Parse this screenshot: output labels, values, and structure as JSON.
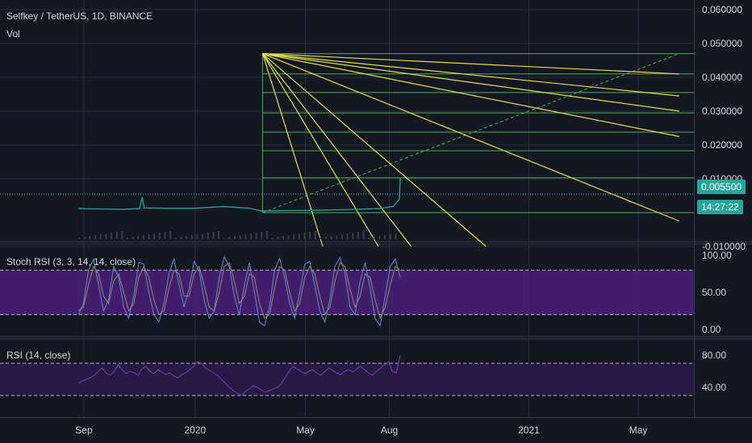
{
  "header": {
    "symbol_line": "Selfkey / TetherUS, 1D, BINANCE",
    "vol_label": "Vol"
  },
  "price_tags": {
    "last_price": "0.005500",
    "countdown": "14:27:22",
    "color": "#26a69a"
  },
  "colors": {
    "background": "#131722",
    "grid": "#2a2e39",
    "axis_text": "#d1d4dc",
    "fan_lines": "#e4e040",
    "fan_levels": "#4caf50",
    "stoch_band": "#4a1f78",
    "rsi_band": "#2a1a48",
    "rsi_line": "#7b3fb5",
    "stoch_k": "#5a8fd6",
    "stoch_d": "#9b8a6a",
    "price_line": "#26c6da"
  },
  "chart_data": [
    {
      "type": "line",
      "panel": "price",
      "title": "Selfkey / TetherUS, 1D, BINANCE",
      "y_ticks": [
        "0.060000",
        "0.050000",
        "0.040000",
        "0.030000",
        "0.020000",
        "0.010000",
        "0.005500",
        "-0.010000"
      ],
      "ylim": [
        -0.01,
        0.06
      ],
      "x_ticks": [
        "Sep",
        "2020",
        "May",
        "Aug",
        "2021",
        "May"
      ],
      "series": [
        {
          "name": "price",
          "x": [
            "2019-08-26",
            "2019-09-15",
            "2019-10-15",
            "2019-11-01",
            "2019-11-04",
            "2019-11-06",
            "2019-12-01",
            "2020-01-01",
            "2020-02-01",
            "2020-03-01",
            "2020-03-13",
            "2020-04-15",
            "2020-05-10",
            "2020-06-15",
            "2020-07-20",
            "2020-08-05",
            "2020-08-12",
            "2020-08-13"
          ],
          "values": [
            0.0012,
            0.0011,
            0.001,
            0.0012,
            0.0046,
            0.0014,
            0.0013,
            0.0013,
            0.0018,
            0.0013,
            0.0005,
            0.0006,
            0.0007,
            0.0009,
            0.0012,
            0.0018,
            0.004,
            0.0105
          ]
        }
      ],
      "gann_fan": {
        "origin": {
          "x": "2020-03-15",
          "y": 0.047
        },
        "fan_ends": [
          {
            "x": "2021-06-15",
            "y": 0.041
          },
          {
            "x": "2021-06-15",
            "y": 0.0345
          },
          {
            "x": "2021-06-15",
            "y": 0.03
          },
          {
            "x": "2021-06-15",
            "y": 0.0225
          },
          {
            "x": "2021-06-15",
            "y": -0.0025
          },
          {
            "x": "2020-11-15",
            "y": -0.01
          },
          {
            "x": "2020-08-25",
            "y": -0.01
          },
          {
            "x": "2020-07-20",
            "y": -0.01
          },
          {
            "x": "2020-05-20",
            "y": -0.01
          }
        ],
        "levels": [
          0.047,
          0.041,
          0.0355,
          0.0295,
          0.0238,
          0.0183,
          0.0103,
          0.0
        ],
        "diagonal_end": {
          "x": "2021-06-15",
          "y": 0.047
        }
      },
      "last_price": 0.0055
    },
    {
      "type": "line",
      "panel": "stoch_rsi",
      "title": "Stoch RSI (3, 3, 14, 14, close)",
      "y_ticks": [
        "100.00",
        "50.00",
        "0.00"
      ],
      "ylim": [
        0,
        100
      ],
      "bands": [
        20,
        80
      ],
      "series": [
        {
          "name": "K",
          "values": [
            20,
            35,
            80,
            95,
            60,
            25,
            40,
            85,
            70,
            30,
            15,
            45,
            90,
            88,
            50,
            20,
            10,
            35,
            75,
            95,
            60,
            30,
            55,
            92,
            80,
            40,
            15,
            25,
            70,
            98,
            85,
            45,
            20,
            60,
            90,
            50,
            10,
            5,
            30,
            80,
            96,
            70,
            35,
            15,
            50,
            88,
            92,
            60,
            25,
            10,
            40,
            85,
            97,
            75,
            30,
            20,
            65,
            90,
            55,
            15,
            5,
            45,
            85,
            95,
            70
          ]
        },
        {
          "name": "D",
          "values": [
            25,
            30,
            60,
            85,
            75,
            45,
            35,
            65,
            75,
            50,
            25,
            35,
            70,
            85,
            70,
            40,
            20,
            25,
            55,
            80,
            75,
            45,
            45,
            75,
            85,
            60,
            30,
            25,
            50,
            85,
            90,
            65,
            35,
            45,
            75,
            70,
            35,
            15,
            20,
            55,
            85,
            80,
            50,
            25,
            35,
            70,
            85,
            75,
            45,
            20,
            30,
            65,
            90,
            85,
            55,
            30,
            45,
            75,
            70,
            40,
            15,
            30,
            60,
            85,
            80
          ]
        }
      ]
    },
    {
      "type": "line",
      "panel": "rsi",
      "title": "RSI (14, close)",
      "y_ticks": [
        "80.00",
        "40.00"
      ],
      "ylim": [
        20,
        90
      ],
      "bands": [
        30,
        70
      ],
      "series": [
        {
          "name": "RSI",
          "values": [
            45,
            48,
            50,
            52,
            55,
            60,
            64,
            58,
            55,
            60,
            68,
            62,
            57,
            60,
            58,
            55,
            63,
            66,
            60,
            57,
            62,
            59,
            56,
            58,
            54,
            52,
            56,
            58,
            62,
            66,
            72,
            70,
            64,
            61,
            58,
            55,
            50,
            45,
            40,
            36,
            33,
            30,
            35,
            38,
            42,
            40,
            37,
            34,
            36,
            38,
            40,
            44,
            52,
            60,
            66,
            63,
            60,
            57,
            60,
            62,
            58,
            55,
            60,
            64,
            61,
            58,
            56,
            60,
            62,
            59,
            63,
            66,
            62,
            58,
            55,
            60,
            64,
            68,
            72,
            60,
            58,
            80
          ]
        }
      ]
    }
  ]
}
